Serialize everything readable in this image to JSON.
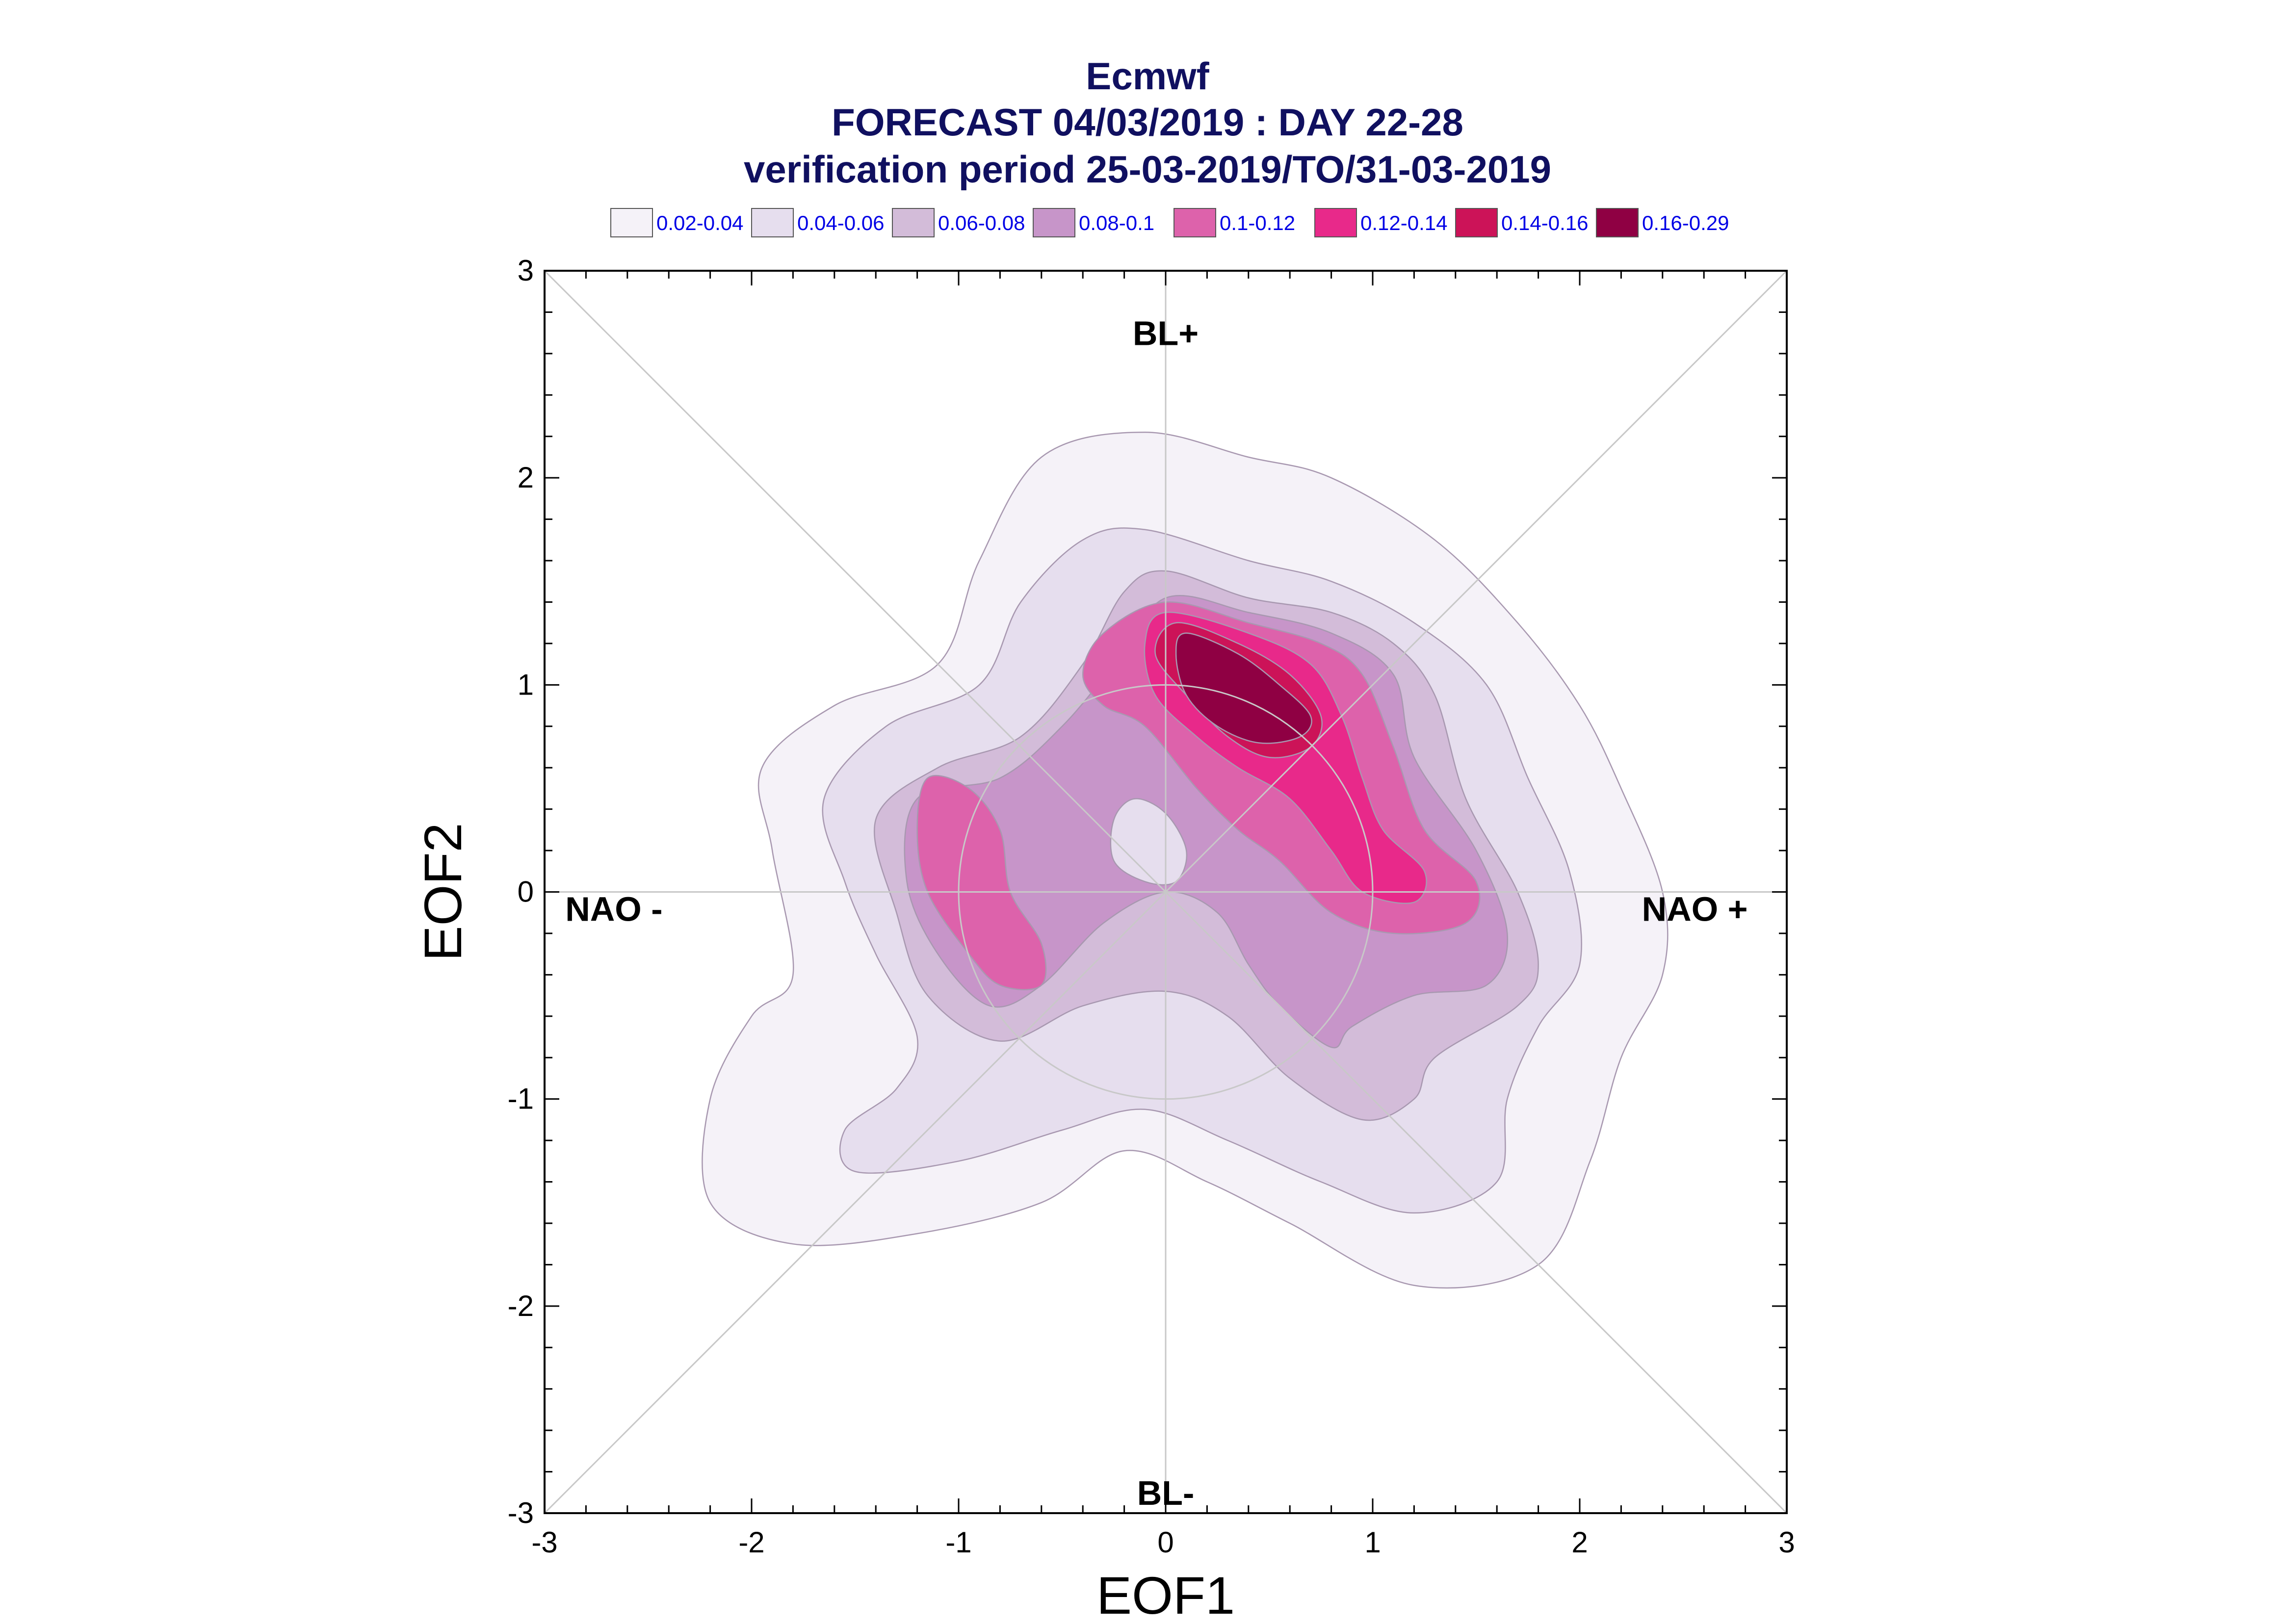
{
  "chart_data": {
    "type": "contour",
    "title": [
      "Ecmwf",
      "FORECAST 04/03/2019 : DAY 22-28",
      "verification period 25-03-2019/TO/31-03-2019"
    ],
    "xlabel": "EOF1",
    "ylabel": "EOF2",
    "xlim": [
      -3,
      3
    ],
    "ylim": [
      -3,
      3
    ],
    "xticks": [
      -3,
      -2,
      -1,
      0,
      1,
      2,
      3
    ],
    "yticks": [
      -3,
      -2,
      -1,
      0,
      1,
      2,
      3
    ],
    "grid": false,
    "legend": {
      "placement": "top",
      "entries": [
        {
          "label": "0.02-0.04",
          "color": "#f5f2f8"
        },
        {
          "label": "0.04-0.06",
          "color": "#e6deee"
        },
        {
          "label": "0.06-0.08",
          "color": "#d3bcd9"
        },
        {
          "label": "0.08-0.1",
          "color": "#c795c9"
        },
        {
          "label": "0.1-0.12",
          "color": "#dd62ab"
        },
        {
          "label": "0.12-0.14",
          "color": "#e8298a"
        },
        {
          "label": "0.14-0.16",
          "color": "#cc1358"
        },
        {
          "label": "0.16-0.29",
          "color": "#8f0043"
        }
      ]
    },
    "regime_labels": [
      {
        "text": "BL+",
        "x": 0,
        "y": 2.7
      },
      {
        "text": "BL-",
        "x": 0,
        "y": -2.9
      },
      {
        "text": "NAO -",
        "x": -2.9,
        "y": -0.08
      },
      {
        "text": "NAO +",
        "x": 2.3,
        "y": -0.08
      }
    ],
    "reference_circle_radius": 1.0,
    "density_levels": [
      {
        "level": "0.02-0.04",
        "polygons": [
          [
            [
              -0.1,
              2.22
            ],
            [
              0.4,
              2.1
            ],
            [
              0.8,
              2.0
            ],
            [
              1.3,
              1.7
            ],
            [
              1.7,
              1.3
            ],
            [
              2.0,
              0.9
            ],
            [
              2.2,
              0.5
            ],
            [
              2.4,
              0.0
            ],
            [
              2.4,
              -0.4
            ],
            [
              2.2,
              -0.8
            ],
            [
              2.05,
              -1.3
            ],
            [
              1.8,
              -1.8
            ],
            [
              1.2,
              -1.9
            ],
            [
              0.6,
              -1.6
            ],
            [
              0.2,
              -1.4
            ],
            [
              -0.2,
              -1.25
            ],
            [
              -0.6,
              -1.5
            ],
            [
              -1.2,
              -1.65
            ],
            [
              -1.8,
              -1.7
            ],
            [
              -2.2,
              -1.5
            ],
            [
              -2.2,
              -1.0
            ],
            [
              -2.0,
              -0.6
            ],
            [
              -1.8,
              -0.4
            ],
            [
              -1.9,
              0.2
            ],
            [
              -1.95,
              0.6
            ],
            [
              -1.6,
              0.9
            ],
            [
              -1.1,
              1.1
            ],
            [
              -0.9,
              1.6
            ],
            [
              -0.6,
              2.1
            ]
          ]
        ]
      },
      {
        "level": "0.04-0.06",
        "polygons": [
          [
            [
              -0.1,
              1.75
            ],
            [
              0.4,
              1.6
            ],
            [
              0.8,
              1.5
            ],
            [
              1.2,
              1.3
            ],
            [
              1.55,
              1.0
            ],
            [
              1.75,
              0.55
            ],
            [
              1.95,
              0.1
            ],
            [
              2.0,
              -0.35
            ],
            [
              1.8,
              -0.65
            ],
            [
              1.65,
              -1.0
            ],
            [
              1.6,
              -1.4
            ],
            [
              1.2,
              -1.55
            ],
            [
              0.75,
              -1.4
            ],
            [
              0.3,
              -1.2
            ],
            [
              -0.1,
              -1.05
            ],
            [
              -0.5,
              -1.15
            ],
            [
              -1.0,
              -1.3
            ],
            [
              -1.5,
              -1.35
            ],
            [
              -1.55,
              -1.15
            ],
            [
              -1.3,
              -0.95
            ],
            [
              -1.2,
              -0.7
            ],
            [
              -1.4,
              -0.3
            ],
            [
              -1.55,
              0.05
            ],
            [
              -1.65,
              0.45
            ],
            [
              -1.35,
              0.8
            ],
            [
              -0.9,
              1.0
            ],
            [
              -0.7,
              1.4
            ],
            [
              -0.4,
              1.7
            ]
          ]
        ]
      },
      {
        "level": "0.06-0.08",
        "polygons": [
          [
            [
              0.0,
              1.55
            ],
            [
              0.4,
              1.42
            ],
            [
              0.8,
              1.35
            ],
            [
              1.1,
              1.2
            ],
            [
              1.3,
              0.95
            ],
            [
              1.45,
              0.45
            ],
            [
              1.7,
              0.0
            ],
            [
              1.8,
              -0.35
            ],
            [
              1.7,
              -0.55
            ],
            [
              1.3,
              -0.8
            ],
            [
              1.2,
              -1.0
            ],
            [
              0.95,
              -1.1
            ],
            [
              0.6,
              -0.9
            ],
            [
              0.3,
              -0.6
            ],
            [
              0.0,
              -0.48
            ],
            [
              -0.4,
              -0.55
            ],
            [
              -0.8,
              -0.72
            ],
            [
              -1.15,
              -0.5
            ],
            [
              -1.3,
              -0.1
            ],
            [
              -1.4,
              0.35
            ],
            [
              -1.1,
              0.6
            ],
            [
              -0.7,
              0.75
            ],
            [
              -0.4,
              1.1
            ],
            [
              -0.2,
              1.45
            ]
          ]
        ]
      },
      {
        "level": "0.08-0.1",
        "polygons": [
          [
            [
              0.0,
              1.42
            ],
            [
              0.4,
              1.35
            ],
            [
              0.8,
              1.25
            ],
            [
              1.1,
              1.05
            ],
            [
              1.2,
              0.65
            ],
            [
              1.5,
              0.2
            ],
            [
              1.65,
              -0.2
            ],
            [
              1.55,
              -0.45
            ],
            [
              1.2,
              -0.5
            ],
            [
              0.9,
              -0.65
            ],
            [
              0.8,
              -0.75
            ],
            [
              0.55,
              -0.55
            ],
            [
              0.4,
              -0.35
            ],
            [
              0.25,
              -0.1
            ],
            [
              0.0,
              0.0
            ],
            [
              -0.3,
              -0.15
            ],
            [
              -0.6,
              -0.45
            ],
            [
              -0.85,
              -0.55
            ],
            [
              -1.1,
              -0.3
            ],
            [
              -1.25,
              0.05
            ],
            [
              -1.2,
              0.45
            ],
            [
              -0.8,
              0.55
            ],
            [
              -0.5,
              0.8
            ],
            [
              -0.25,
              1.1
            ]
          ]
        ]
      },
      {
        "level": "0.1-0.12",
        "polygons": [
          [
            [
              0.0,
              1.4
            ],
            [
              0.4,
              1.3
            ],
            [
              0.75,
              1.2
            ],
            [
              0.95,
              1.05
            ],
            [
              1.1,
              0.7
            ],
            [
              1.25,
              0.3
            ],
            [
              1.5,
              0.05
            ],
            [
              1.45,
              -0.15
            ],
            [
              1.1,
              -0.2
            ],
            [
              0.8,
              -0.1
            ],
            [
              0.55,
              0.15
            ],
            [
              0.35,
              0.3
            ],
            [
              0.15,
              0.5
            ],
            [
              -0.1,
              0.8
            ],
            [
              -0.3,
              0.9
            ],
            [
              -0.4,
              1.05
            ],
            [
              -0.3,
              1.25
            ]
          ],
          [
            [
              -1.15,
              0.55
            ],
            [
              -0.95,
              0.5
            ],
            [
              -0.8,
              0.3
            ],
            [
              -0.75,
              0.0
            ],
            [
              -0.6,
              -0.25
            ],
            [
              -0.6,
              -0.45
            ],
            [
              -0.8,
              -0.45
            ],
            [
              -0.95,
              -0.3
            ],
            [
              -1.15,
              0.0
            ],
            [
              -1.2,
              0.3
            ]
          ]
        ]
      },
      {
        "level": "0.12-0.14",
        "polygons": [
          [
            [
              0.0,
              1.35
            ],
            [
              0.4,
              1.25
            ],
            [
              0.7,
              1.1
            ],
            [
              0.85,
              0.85
            ],
            [
              0.95,
              0.55
            ],
            [
              1.05,
              0.3
            ],
            [
              1.25,
              0.1
            ],
            [
              1.2,
              -0.05
            ],
            [
              0.95,
              0.0
            ],
            [
              0.8,
              0.2
            ],
            [
              0.6,
              0.45
            ],
            [
              0.35,
              0.6
            ],
            [
              0.15,
              0.75
            ],
            [
              -0.05,
              0.95
            ],
            [
              -0.1,
              1.2
            ]
          ]
        ]
      },
      {
        "level": "0.14-0.16",
        "polygons": [
          [
            [
              0.05,
              1.3
            ],
            [
              0.35,
              1.2
            ],
            [
              0.6,
              1.05
            ],
            [
              0.75,
              0.85
            ],
            [
              0.7,
              0.7
            ],
            [
              0.5,
              0.65
            ],
            [
              0.3,
              0.75
            ],
            [
              0.1,
              0.95
            ],
            [
              -0.05,
              1.15
            ]
          ]
        ]
      },
      {
        "level": "0.16-0.29",
        "polygons": [
          [
            [
              0.1,
              1.25
            ],
            [
              0.35,
              1.15
            ],
            [
              0.55,
              1.0
            ],
            [
              0.7,
              0.85
            ],
            [
              0.65,
              0.75
            ],
            [
              0.45,
              0.72
            ],
            [
              0.25,
              0.8
            ],
            [
              0.1,
              0.95
            ],
            [
              0.05,
              1.15
            ]
          ]
        ]
      },
      {
        "level": "hole-0.04-0.06",
        "polygons": [
          [
            [
              -0.15,
              0.45
            ],
            [
              0.0,
              0.38
            ],
            [
              0.1,
              0.2
            ],
            [
              0.05,
              0.05
            ],
            [
              -0.1,
              0.05
            ],
            [
              -0.25,
              0.15
            ],
            [
              -0.25,
              0.35
            ]
          ]
        ]
      }
    ]
  }
}
